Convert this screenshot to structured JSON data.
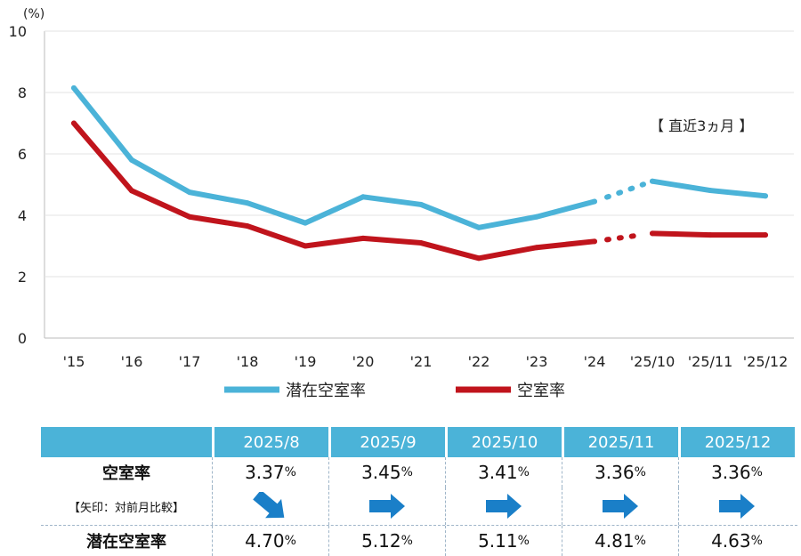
{
  "chart_data": {
    "type": "line",
    "unit_label": "(%)",
    "ylim": [
      0,
      10
    ],
    "yticks": [
      "0",
      "2",
      "4",
      "6",
      "8",
      "10"
    ],
    "categories": [
      "'15",
      "'16",
      "'17",
      "'18",
      "'19",
      "'20",
      "'21",
      "'22",
      "'23",
      "'24",
      "'25/10",
      "'25/11",
      "'25/12"
    ],
    "series": [
      {
        "name": "潜在空室率",
        "color": "#4bb3d8",
        "values": [
          8.15,
          5.8,
          4.75,
          4.4,
          3.75,
          4.6,
          4.35,
          3.6,
          3.95,
          4.45,
          5.11,
          4.81,
          4.63
        ]
      },
      {
        "name": "空室率",
        "color": "#c0141c",
        "values": [
          7.0,
          4.8,
          3.95,
          3.65,
          3.0,
          3.25,
          3.1,
          2.6,
          2.95,
          3.15,
          3.41,
          3.36,
          3.36
        ]
      }
    ],
    "annotation": "【 直近3ヵ月 】"
  },
  "table": {
    "months": [
      "2025/8",
      "2025/9",
      "2025/10",
      "2025/11",
      "2025/12"
    ],
    "vacancy_label": "空室率",
    "arrow_label": "【矢印：対前月比較】",
    "potential_label": "潜在空室率",
    "vacancy": [
      "3.37",
      "3.45",
      "3.41",
      "3.36",
      "3.36"
    ],
    "potential": [
      "4.70",
      "5.12",
      "5.11",
      "4.81",
      "4.63"
    ],
    "arrows": [
      "down-right",
      "right",
      "right",
      "right",
      "right"
    ],
    "percent": "%",
    "arrow_color": "#1a7fc8"
  }
}
